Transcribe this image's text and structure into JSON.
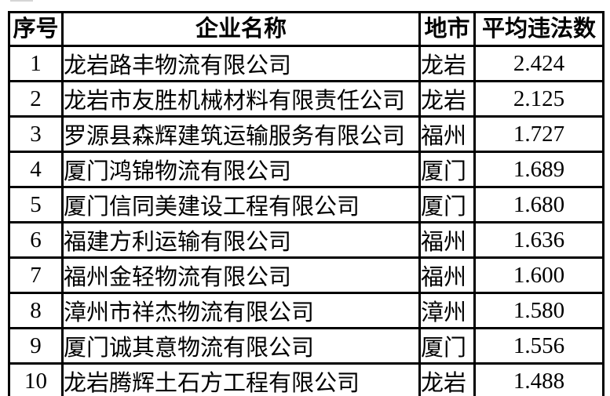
{
  "page": {
    "background": "#ffffff",
    "top_edge_fragment_color": "#d5d5d5"
  },
  "table": {
    "columns": [
      {
        "id": "index",
        "label": "序号"
      },
      {
        "id": "company",
        "label": "企业名称"
      },
      {
        "id": "city",
        "label": "地市"
      },
      {
        "id": "avg_violations",
        "label": "平均违法数"
      }
    ],
    "rows": [
      {
        "index": "1",
        "company": "龙岩路丰物流有限公司",
        "city": "龙岩",
        "avg_violations": "2.424"
      },
      {
        "index": "2",
        "company": "龙岩市友胜机械材料有限责任公司",
        "city": "龙岩",
        "avg_violations": "2.125"
      },
      {
        "index": "3",
        "company": "罗源县森辉建筑运输服务有限公司",
        "city": "福州",
        "avg_violations": "1.727"
      },
      {
        "index": "4",
        "company": "厦门鸿锦物流有限公司",
        "city": "厦门",
        "avg_violations": "1.689"
      },
      {
        "index": "5",
        "company": "厦门信同美建设工程有限公司",
        "city": "厦门",
        "avg_violations": "1.680"
      },
      {
        "index": "6",
        "company": "福建方利运输有限公司",
        "city": "福州",
        "avg_violations": "1.636"
      },
      {
        "index": "7",
        "company": "福州金轻物流有限公司",
        "city": "福州",
        "avg_violations": "1.600"
      },
      {
        "index": "8",
        "company": "漳州市祥杰物流有限公司",
        "city": "漳州",
        "avg_violations": "1.580"
      },
      {
        "index": "9",
        "company": "厦门诚其意物流有限公司",
        "city": "厦门",
        "avg_violations": "1.556"
      },
      {
        "index": "10",
        "company": "龙岩腾辉土石方工程有限公司",
        "city": "龙岩",
        "avg_violations": "1.488"
      }
    ],
    "colors": {
      "border": "#000000",
      "text": "#000000",
      "cell_background": "#ffffff"
    }
  }
}
